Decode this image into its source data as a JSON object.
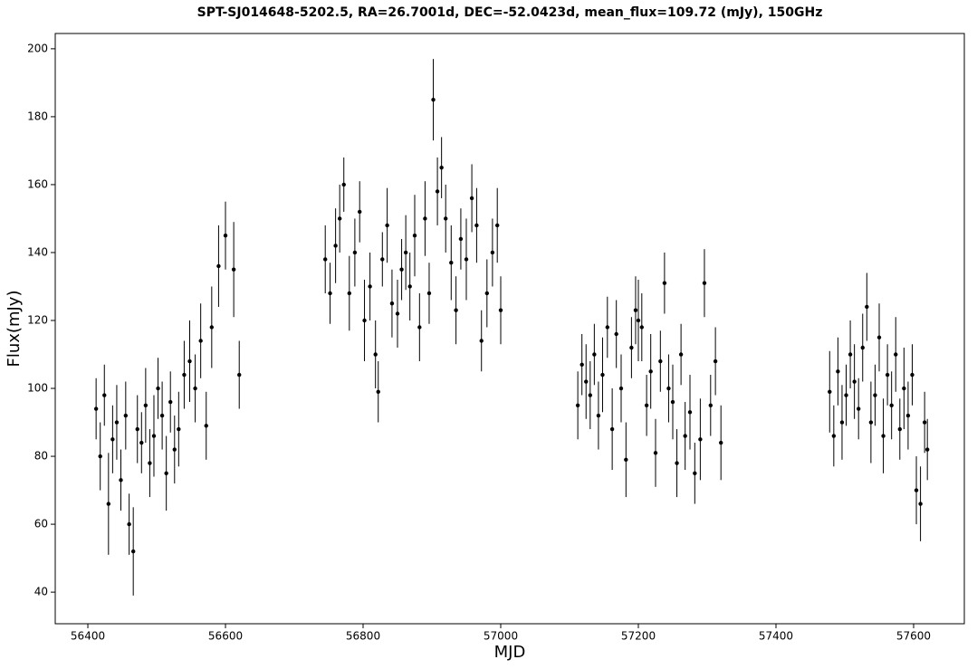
{
  "chart_data": {
    "type": "scatter",
    "title": "SPT-SJ014648-5202.5, RA=26.7001d, DEC=-52.0423d, mean_flux=109.72 (mJy), 150GHz",
    "x_label": "MJD",
    "y_label": "Flux(mJy)",
    "xlim": [
      56352.6,
      57673.7
    ],
    "ylim": [
      30.7,
      204.5
    ],
    "xticks": [
      56400,
      56600,
      56800,
      57000,
      57200,
      57400,
      57600
    ],
    "yticks": [
      40,
      60,
      80,
      100,
      120,
      140,
      160,
      180,
      200
    ],
    "grid": false,
    "series": [
      {
        "color": "#000000",
        "x": [
          56412,
          56418,
          56424,
          56430,
          56436,
          56442,
          56448,
          56455,
          56460,
          56466,
          56472,
          56478,
          56484,
          56490,
          56496,
          56502,
          56508,
          56514,
          56520,
          56526,
          56532,
          56540,
          56548,
          56556,
          56564,
          56572,
          56580,
          56590,
          56600,
          56612,
          56620,
          56745,
          56752,
          56760,
          56766,
          56772,
          56780,
          56788,
          56795,
          56802,
          56810,
          56818,
          56822,
          56828,
          56835,
          56842,
          56850,
          56856,
          56862,
          56868,
          56875,
          56882,
          56890,
          56896,
          56902,
          56908,
          56914,
          56920,
          56928,
          56935,
          56942,
          56950,
          56958,
          56965,
          56972,
          56980,
          56988,
          56995,
          57000,
          57112,
          57118,
          57124,
          57130,
          57136,
          57142,
          57148,
          57155,
          57162,
          57168,
          57175,
          57182,
          57190,
          57196,
          57200,
          57205,
          57212,
          57218,
          57225,
          57232,
          57238,
          57244,
          57250,
          57256,
          57262,
          57268,
          57275,
          57282,
          57290,
          57296,
          57305,
          57312,
          57320,
          57478,
          57484,
          57490,
          57496,
          57502,
          57508,
          57514,
          57520,
          57526,
          57532,
          57538,
          57544,
          57550,
          57556,
          57562,
          57568,
          57574,
          57580,
          57586,
          57592,
          57598,
          57604,
          57610,
          57616,
          57620
        ],
        "values": [
          94,
          80,
          98,
          66,
          85,
          90,
          73,
          92,
          60,
          52,
          88,
          84,
          95,
          78,
          86,
          100,
          92,
          75,
          96,
          82,
          88,
          104,
          108,
          100,
          114,
          89,
          118,
          136,
          145,
          135,
          104,
          138,
          128,
          142,
          150,
          160,
          128,
          140,
          152,
          120,
          130,
          110,
          99,
          138,
          148,
          125,
          122,
          135,
          140,
          130,
          145,
          118,
          150,
          128,
          185,
          158,
          165,
          150,
          137,
          123,
          144,
          138,
          156,
          148,
          114,
          128,
          140,
          148,
          123,
          95,
          107,
          102,
          98,
          110,
          92,
          104,
          118,
          88,
          116,
          100,
          79,
          112,
          123,
          120,
          118,
          95,
          105,
          81,
          108,
          131,
          100,
          96,
          78,
          110,
          86,
          93,
          75,
          85,
          131,
          95,
          108,
          84,
          99,
          86,
          105,
          90,
          98,
          110,
          102,
          94,
          112,
          124,
          90,
          98,
          115,
          86,
          104,
          95,
          110,
          88,
          100,
          92,
          104,
          70,
          66,
          90,
          82
        ],
        "errors": [
          9,
          10,
          9,
          15,
          10,
          11,
          9,
          10,
          9,
          13,
          10,
          9,
          11,
          10,
          12,
          9,
          10,
          11,
          9,
          10,
          11,
          10,
          12,
          10,
          11,
          10,
          12,
          12,
          10,
          14,
          10,
          10,
          9,
          11,
          10,
          8,
          11,
          10,
          9,
          12,
          10,
          10,
          9,
          8,
          11,
          10,
          10,
          9,
          11,
          10,
          12,
          10,
          11,
          9,
          12,
          10,
          9,
          10,
          11,
          10,
          9,
          12,
          10,
          11,
          9,
          10,
          10,
          11,
          10,
          10,
          9,
          11,
          10,
          9,
          10,
          11,
          9,
          12,
          10,
          10,
          11,
          9,
          10,
          12,
          10,
          9,
          11,
          10,
          9,
          9,
          10,
          11,
          10,
          9,
          10,
          11,
          9,
          12,
          10,
          9,
          10,
          11,
          12,
          9,
          10,
          11,
          9,
          10,
          11,
          9,
          10,
          10,
          12,
          9,
          10,
          11,
          9,
          10,
          11,
          9,
          12,
          10,
          9,
          10,
          11,
          9,
          9
        ]
      }
    ]
  }
}
